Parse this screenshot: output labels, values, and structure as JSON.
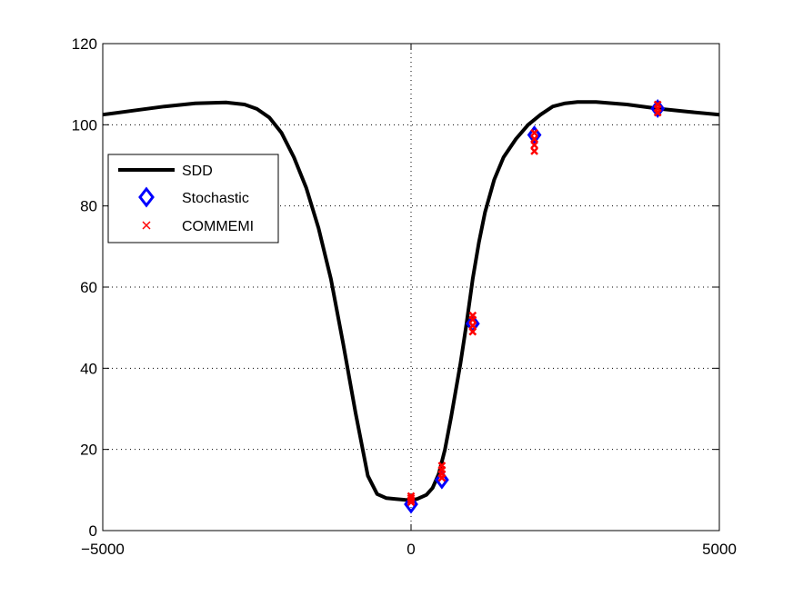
{
  "chart_data": {
    "type": "line",
    "title": "",
    "xlabel": "",
    "ylabel": "",
    "xlim": [
      -5000,
      5000
    ],
    "ylim": [
      0,
      120
    ],
    "x_ticks": [
      -5000,
      0,
      5000
    ],
    "y_ticks": [
      0,
      20,
      40,
      60,
      80,
      100,
      120
    ],
    "x_tick_labels": [
      "−5000",
      "0",
      "5000"
    ],
    "y_tick_labels": [
      "0",
      "20",
      "40",
      "60",
      "80",
      "100",
      "120"
    ],
    "grid": "dotted",
    "legend_position": "upper-left",
    "legend": [
      "SDD",
      "Stochastic",
      "COMMEMI"
    ],
    "series": [
      {
        "name": "SDD",
        "style": "line",
        "color": "#000000",
        "x": [
          -5000,
          -4500,
          -4000,
          -3500,
          -3000,
          -2700,
          -2500,
          -2300,
          -2100,
          -1900,
          -1700,
          -1500,
          -1300,
          -1100,
          -900,
          -700,
          -550,
          -400,
          -250,
          -100,
          0,
          100,
          250,
          350,
          450,
          550,
          650,
          800,
          900,
          1000,
          1100,
          1200,
          1350,
          1500,
          1700,
          1900,
          2100,
          2300,
          2500,
          2700,
          3000,
          3500,
          4000,
          4500,
          5000
        ],
        "y": [
          102.5,
          103.5,
          104.5,
          105.3,
          105.5,
          105,
          103.9,
          101.8,
          98,
          92,
          84.5,
          74.5,
          62,
          46,
          29,
          13.5,
          9,
          8,
          7.8,
          7.6,
          7.5,
          7.8,
          8.8,
          10.5,
          14,
          20,
          28,
          41,
          51,
          62,
          71,
          78.5,
          86.5,
          92,
          96.5,
          100,
          102.5,
          104.5,
          105.3,
          105.6,
          105.6,
          105,
          104,
          103.2,
          102.5
        ]
      },
      {
        "name": "Stochastic",
        "style": "marker-diamond",
        "color": "#0000ff",
        "x": [
          0,
          500,
          1000,
          2000,
          4000
        ],
        "y": [
          6.5,
          12.5,
          51,
          97.5,
          104
        ]
      },
      {
        "name": "COMMEMI",
        "style": "marker-x",
        "color": "#ff0000",
        "x": [
          0,
          0,
          0,
          0,
          500,
          500,
          500,
          500,
          1000,
          1000,
          1000,
          1000,
          2000,
          2000,
          2000,
          2000,
          4000,
          4000,
          4000
        ],
        "y": [
          7,
          7.5,
          8,
          8.5,
          13,
          14,
          15,
          16,
          49,
          50.5,
          52,
          53,
          93.5,
          95,
          96.5,
          98,
          103,
          104,
          105
        ]
      }
    ]
  }
}
